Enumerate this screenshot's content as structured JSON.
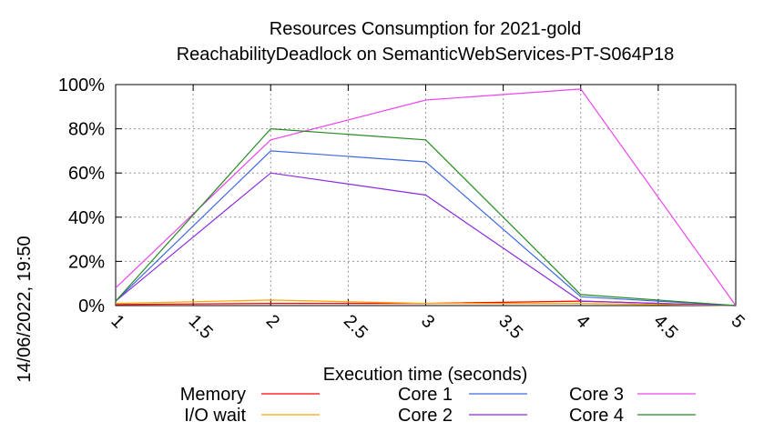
{
  "chart_data": {
    "type": "line",
    "title": "Resources Consumption for 2021-gold",
    "subtitle": "ReachabilityDeadlock on SemanticWebServices-PT-S064P18",
    "xlabel": "Execution time (seconds)",
    "ylabel": "",
    "xlim": [
      1,
      5
    ],
    "ylim": [
      0,
      100
    ],
    "x_ticks": [
      "1",
      "1.5",
      "2",
      "2.5",
      "3",
      "3.5",
      "4",
      "4.5",
      "5"
    ],
    "y_ticks": [
      "0%",
      "20%",
      "40%",
      "60%",
      "80%",
      "100%"
    ],
    "grid": true,
    "legend_position": "bottom",
    "series": [
      {
        "name": "Memory",
        "color": "#ff0000",
        "x": [
          1,
          2,
          3,
          4,
          5
        ],
        "y": [
          0.5,
          1,
          1,
          2,
          0
        ]
      },
      {
        "name": "I/O wait",
        "color": "#ffa500",
        "x": [
          1,
          2,
          3,
          4,
          5
        ],
        "y": [
          1,
          2.5,
          1,
          1,
          0
        ]
      },
      {
        "name": "Core 1",
        "color": "#4169e1",
        "x": [
          1,
          2,
          3,
          4,
          5
        ],
        "y": [
          2,
          70,
          65,
          4,
          0
        ]
      },
      {
        "name": "Core 2",
        "color": "#8a2be2",
        "x": [
          1,
          2,
          3,
          4,
          5
        ],
        "y": [
          2,
          60,
          50,
          2,
          0
        ]
      },
      {
        "name": "Core 3",
        "color": "#ee44ee",
        "x": [
          1,
          2,
          3,
          4,
          5
        ],
        "y": [
          8,
          75,
          93,
          98,
          0
        ]
      },
      {
        "name": "Core 4",
        "color": "#228b22",
        "x": [
          1,
          2,
          3,
          4,
          5
        ],
        "y": [
          2,
          80,
          75,
          5,
          0
        ]
      }
    ]
  },
  "timestamp": "14/06/2022, 19:50"
}
